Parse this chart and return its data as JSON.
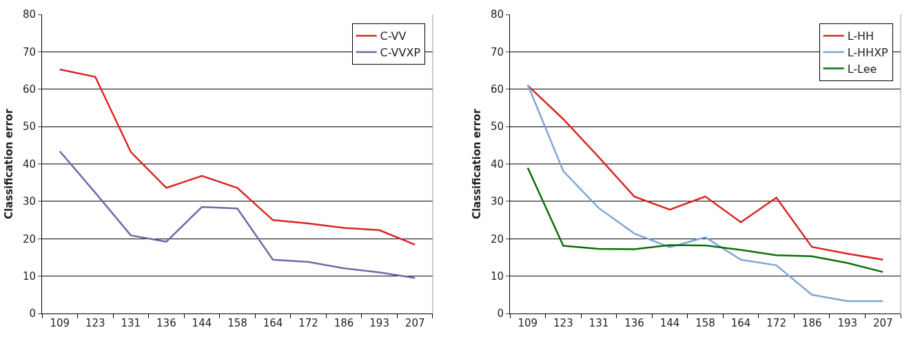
{
  "chart_data": [
    {
      "type": "line",
      "ylabel": "Classification error",
      "categories": [
        "109",
        "123",
        "131",
        "136",
        "144",
        "158",
        "164",
        "172",
        "186",
        "193",
        "207"
      ],
      "ylim": [
        0,
        80
      ],
      "yticks": [
        0,
        10,
        20,
        30,
        40,
        50,
        60,
        70,
        80
      ],
      "grid": "y",
      "legend": "top right",
      "marker": "none",
      "series": [
        {
          "name": "C-VV",
          "color": "#dd2222",
          "values": [
            65.3,
            63.3,
            43.2,
            33.6,
            36.8,
            33.6,
            25.0,
            24.1,
            22.9,
            22.3,
            18.4
          ]
        },
        {
          "name": "C-VVXP",
          "color": "#6b6ba8",
          "values": [
            43.4,
            32.3,
            20.9,
            19.2,
            28.5,
            28.1,
            14.4,
            13.8,
            12.1,
            11.0,
            9.5
          ]
        }
      ]
    },
    {
      "type": "line",
      "ylabel": "Classification error",
      "categories": [
        "109",
        "123",
        "131",
        "136",
        "144",
        "158",
        "164",
        "172",
        "186",
        "193",
        "207"
      ],
      "ylim": [
        0,
        80
      ],
      "yticks": [
        0,
        10,
        20,
        30,
        40,
        50,
        60,
        70,
        80
      ],
      "grid": "y",
      "legend": "top right",
      "marker": "none",
      "series": [
        {
          "name": "L-HH",
          "color": "#dd2222",
          "values": [
            61.0,
            52.0,
            41.8,
            31.3,
            27.8,
            31.3,
            24.4,
            31.0,
            17.8,
            16.0,
            14.4
          ]
        },
        {
          "name": "L-HHXP",
          "color": "#7ea6d8",
          "values": [
            61.2,
            38.1,
            28.2,
            21.4,
            17.7,
            20.4,
            14.4,
            12.9,
            5.0,
            3.3,
            3.3
          ]
        },
        {
          "name": "L-Lee",
          "color": "#0a6e0a",
          "values": [
            39.0,
            18.1,
            17.3,
            17.2,
            18.3,
            18.2,
            17.0,
            15.6,
            15.3,
            13.5,
            11.1
          ]
        }
      ]
    }
  ]
}
